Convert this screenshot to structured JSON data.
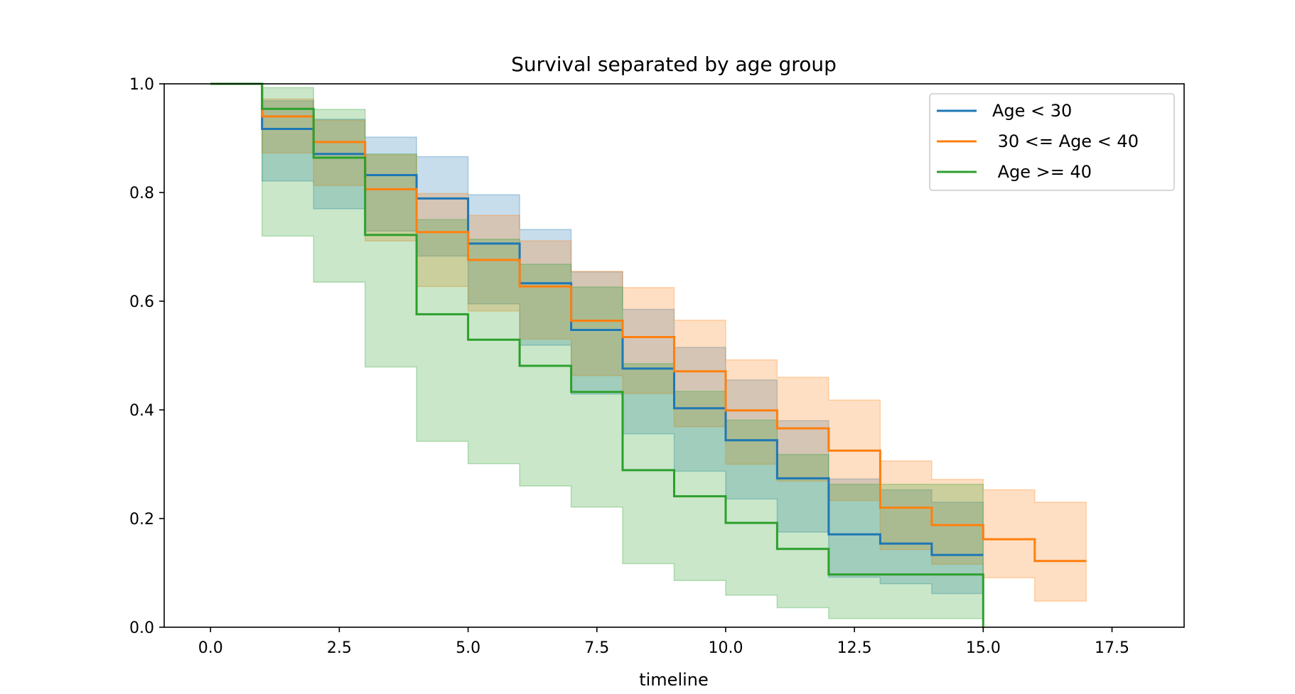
{
  "chart_data": {
    "type": "line",
    "title": "Survival separated by age group",
    "xlabel": "timeline",
    "ylabel": "",
    "xlim": [
      -0.9,
      18.9
    ],
    "ylim": [
      0.0,
      1.0
    ],
    "xticks": [
      "0.0",
      "2.5",
      "5.0",
      "7.5",
      "10.0",
      "12.5",
      "15.0",
      "17.5"
    ],
    "yticks": [
      "0.0",
      "0.2",
      "0.4",
      "0.6",
      "0.8",
      "1.0"
    ],
    "grid": false,
    "legend_position": "top-right",
    "series": [
      {
        "name": "Age < 30",
        "color": "#1f77b4",
        "t": [
          0,
          1,
          2,
          3,
          4,
          5,
          6,
          7,
          8,
          9,
          10,
          11,
          12,
          13,
          14,
          15
        ],
        "s": [
          1.0,
          0.917,
          0.871,
          0.832,
          0.789,
          0.706,
          0.633,
          0.547,
          0.476,
          0.403,
          0.344,
          0.274,
          0.171,
          0.154,
          0.133,
          0.133
        ],
        "upper": [
          1.0,
          0.969,
          0.935,
          0.902,
          0.866,
          0.796,
          0.732,
          0.654,
          0.585,
          0.515,
          0.455,
          0.38,
          0.273,
          0.253,
          0.23,
          0.23
        ],
        "lower": [
          1.0,
          0.821,
          0.77,
          0.729,
          0.683,
          0.595,
          0.519,
          0.429,
          0.356,
          0.287,
          0.236,
          0.175,
          0.092,
          0.08,
          0.062,
          0.062
        ]
      },
      {
        "name": " 30 <= Age < 40",
        "color": "#ff7f0e",
        "t": [
          0,
          1,
          2,
          3,
          4,
          5,
          6,
          7,
          8,
          9,
          10,
          11,
          12,
          13,
          14,
          15,
          16,
          17
        ],
        "s": [
          1.0,
          0.94,
          0.893,
          0.806,
          0.727,
          0.676,
          0.627,
          0.564,
          0.534,
          0.471,
          0.399,
          0.366,
          0.325,
          0.22,
          0.188,
          0.162,
          0.122,
          0.122
        ],
        "upper": [
          1.0,
          0.972,
          0.933,
          0.869,
          0.798,
          0.758,
          0.711,
          0.655,
          0.625,
          0.565,
          0.492,
          0.46,
          0.418,
          0.306,
          0.272,
          0.253,
          0.23,
          0.23
        ],
        "lower": [
          1.0,
          0.873,
          0.813,
          0.711,
          0.627,
          0.582,
          0.53,
          0.463,
          0.43,
          0.369,
          0.3,
          0.269,
          0.233,
          0.143,
          0.116,
          0.091,
          0.048,
          0.048
        ]
      },
      {
        "name": " Age >= 40",
        "color": "#2ca02c",
        "t": [
          0,
          1,
          2,
          3,
          4,
          5,
          6,
          7,
          8,
          9,
          10,
          11,
          12,
          15
        ],
        "s": [
          1.0,
          0.954,
          0.864,
          0.722,
          0.576,
          0.529,
          0.481,
          0.433,
          0.289,
          0.241,
          0.192,
          0.144,
          0.097,
          0.0
        ],
        "upper": [
          1.0,
          0.993,
          0.953,
          0.871,
          0.75,
          0.714,
          0.668,
          0.626,
          0.485,
          0.434,
          0.381,
          0.318,
          0.263,
          0.263
        ],
        "lower": [
          1.0,
          0.72,
          0.635,
          0.479,
          0.342,
          0.301,
          0.26,
          0.221,
          0.117,
          0.086,
          0.059,
          0.036,
          0.016,
          0.016
        ]
      }
    ]
  }
}
